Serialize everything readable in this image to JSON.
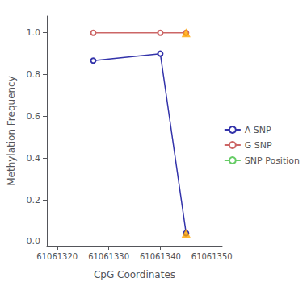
{
  "chart_data": {
    "type": "line",
    "xlabel": "CpG Coordinates",
    "ylabel": "Methylation Frequency",
    "x": [
      61061327,
      61061340,
      61061345
    ],
    "series": [
      {
        "name": "A SNP",
        "color": "#3333aa",
        "marker": "circle",
        "values": [
          0.867,
          0.9,
          0.04
        ]
      },
      {
        "name": "G SNP",
        "color": "#cc6666",
        "marker": "circle",
        "values": [
          1.0,
          1.0,
          1.0
        ]
      },
      {
        "name": "SNP Position",
        "type": "vline",
        "color": "#66cc66",
        "x": 61061346
      },
      {
        "type": "scatter",
        "marker": "triangle",
        "color": "#FFA500",
        "x": [
          61061345
        ],
        "values": [
          1.0
        ]
      },
      {
        "type": "scatter",
        "marker": "triangle",
        "color": "#FFA500",
        "x": [
          61061345
        ],
        "values": [
          0.04
        ]
      }
    ],
    "xlim": [
      61061318,
      61061352
    ],
    "ylim": [
      -0.02,
      1.08
    ],
    "xticks": [
      61061320,
      61061330,
      61061340,
      61061350
    ],
    "yticks": [
      {
        "value": 0.0,
        "label": "0.0"
      },
      0.2,
      0.4,
      0.6,
      0.8,
      {
        "value": 1.0,
        "label": "1.0"
      }
    ],
    "grid": false,
    "legend": "center right"
  }
}
